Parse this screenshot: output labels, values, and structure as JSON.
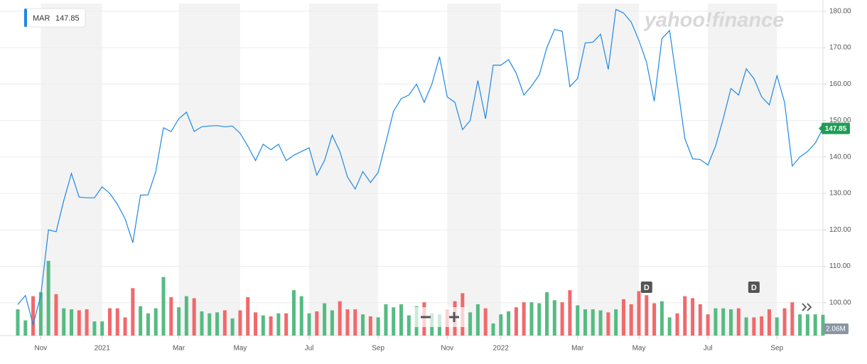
{
  "chart_data": {
    "type": "line",
    "watermark": "yahoo!finance",
    "categories": [
      null,
      null,
      null,
      "Nov",
      null,
      null,
      null,
      null,
      null,
      null,
      null,
      "2021",
      null,
      null,
      null,
      null,
      null,
      null,
      null,
      null,
      null,
      "Mar",
      null,
      null,
      null,
      null,
      null,
      null,
      null,
      "May",
      null,
      null,
      null,
      null,
      null,
      null,
      null,
      null,
      "Jul",
      null,
      null,
      null,
      null,
      null,
      null,
      null,
      null,
      "Sep",
      null,
      null,
      null,
      null,
      null,
      null,
      null,
      null,
      "Nov",
      null,
      null,
      null,
      null,
      null,
      null,
      "2022",
      null,
      null,
      null,
      null,
      null,
      null,
      null,
      null,
      null,
      "Mar",
      null,
      null,
      null,
      null,
      null,
      null,
      null,
      "May",
      null,
      null,
      null,
      null,
      null,
      null,
      null,
      null,
      "Jul",
      null,
      null,
      null,
      null,
      null,
      null,
      null,
      null,
      "Sep",
      null,
      null,
      null,
      null,
      null,
      null
    ],
    "series": [
      {
        "name": "MAR",
        "color": "#1e88e5",
        "values": [
          99.5,
          102,
          94,
          102,
          120,
          119.5,
          128,
          135.5,
          129,
          128.8,
          128.8,
          131.8,
          130,
          127,
          123,
          116.5,
          129.5,
          129.6,
          136,
          148,
          147,
          150.5,
          152.3,
          147,
          148.3,
          148.5,
          148.6,
          148.3,
          148.5,
          146.5,
          143,
          139,
          143.5,
          142,
          143.5,
          139,
          140.5,
          141.5,
          142.5,
          135,
          139,
          146,
          141.5,
          134.5,
          131.2,
          136,
          133,
          135.8,
          144,
          152.5,
          156,
          157,
          160,
          155,
          160,
          167.5,
          156.5,
          155,
          147.5,
          150,
          161,
          150.5,
          165.2,
          165.2,
          166.7,
          163,
          157,
          159.5,
          162.5,
          170,
          175,
          174.5,
          159.3,
          161.5,
          171.3,
          171.5,
          173.7,
          164,
          180.5,
          179.5,
          177,
          172,
          166,
          155.3,
          172.5,
          174.7,
          160,
          145,
          139.5,
          139.3,
          137.8,
          143,
          150.5,
          158.8,
          157,
          164.2,
          161.5,
          156.5,
          154.3,
          162.3,
          155,
          137.5,
          140,
          141.5,
          143.8,
          147.85
        ]
      }
    ],
    "volume": {
      "type": "bar",
      "up_color": "#56bb83",
      "down_color": "#f0696c",
      "values": [
        2.6,
        1.5,
        3.9,
        4.3,
        7.4,
        4.1,
        2.7,
        2.6,
        2.5,
        2.6,
        1.4,
        1.4,
        2.7,
        2.7,
        1.8,
        4.7,
        2.9,
        2.2,
        2.7,
        5.8,
        3.8,
        2.8,
        3.9,
        3.7,
        2.4,
        2.2,
        2.3,
        2.5,
        1.7,
        2.5,
        3.8,
        2.3,
        2.0,
        1.9,
        2.2,
        2.2,
        4.5,
        3.9,
        2.2,
        2.4,
        3.2,
        2.5,
        3.4,
        2.6,
        2.6,
        2.1,
        1.9,
        1.8,
        3.1,
        2.8,
        3.1,
        2.0,
        2.9,
        3.3,
        2.2,
        2.1,
        2.6,
        3.4,
        4.2,
        2.3,
        3.1,
        2.7,
        1.2,
        2.1,
        2.4,
        2.8,
        3.3,
        3.3,
        3.2,
        4.3,
        3.5,
        3.3,
        4.5,
        3.0,
        2.6,
        2.6,
        2.5,
        2.3,
        2.6,
        3.6,
        3.1,
        4.4,
        4.0,
        3.2,
        3.4,
        1.8,
        2.2,
        3.9,
        3.7,
        3.1,
        2.1,
        2.7,
        2.7,
        2.6,
        2.7,
        1.8,
        1.8,
        1.9,
        2.6,
        1.8,
        2.7,
        3.3,
        2.1,
        2.1,
        2.1,
        2.06
      ],
      "value_labels": [
        null,
        null,
        null,
        null,
        null,
        null,
        null,
        null,
        null,
        null,
        null,
        null,
        null,
        null,
        null,
        null,
        null,
        null,
        null,
        null,
        null,
        null,
        null,
        null,
        null,
        null,
        null,
        null,
        null,
        null,
        null,
        null,
        null,
        null,
        null,
        null,
        null,
        null,
        null,
        null,
        null,
        null,
        null,
        null,
        null,
        null,
        null,
        null,
        null,
        null,
        null,
        null,
        null,
        null,
        null,
        null,
        null,
        null,
        null,
        null,
        null,
        null,
        null,
        null,
        null,
        null,
        null,
        null,
        null,
        null,
        null,
        null,
        null,
        null,
        null,
        null,
        null,
        null,
        null,
        null,
        null,
        null,
        null,
        null,
        null,
        null,
        null,
        null,
        null,
        null,
        null,
        null,
        null,
        null,
        null,
        null,
        null,
        null,
        null,
        null,
        null,
        null,
        null,
        null,
        null,
        "2.06M"
      ]
    },
    "dividends": [
      {
        "category_index": 82,
        "label": "D"
      },
      {
        "category_index": 96,
        "label": "D"
      }
    ],
    "ylim": [
      91,
      182.1
    ],
    "yticks": [
      {
        "value": 100,
        "label": "100.00"
      },
      {
        "value": 110,
        "label": "110.00"
      },
      {
        "value": 120,
        "label": "120.00"
      },
      {
        "value": 130,
        "label": "130.00"
      },
      {
        "value": 140,
        "label": "140.00"
      },
      {
        "value": 150,
        "label": "150.00"
      },
      {
        "value": 160,
        "label": "160.00"
      },
      {
        "value": 170,
        "label": "170.00"
      },
      {
        "value": 180,
        "label": "180.00"
      }
    ],
    "grid": true,
    "last_price_color": "#1f9d55"
  }
}
